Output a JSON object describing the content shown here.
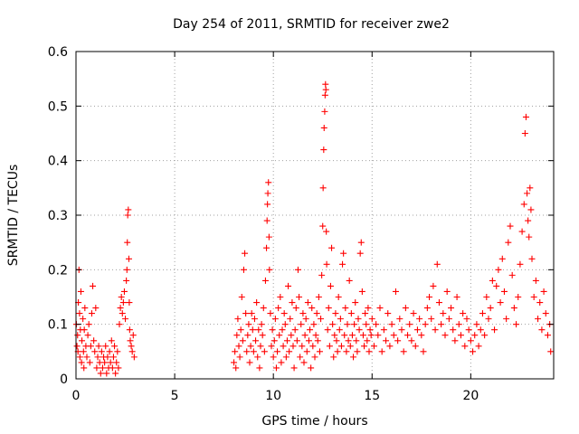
{
  "chart_data": {
    "type": "scatter",
    "title": "Day 254 of 2011, SRMTID for receiver zwe2",
    "xlabel": "GPS time / hours",
    "ylabel": "SRMTID / TECUs",
    "xlim": [
      0,
      24.2
    ],
    "ylim": [
      0,
      0.6
    ],
    "xticks": [
      0,
      5,
      10,
      15,
      20
    ],
    "xtick_labels": [
      "0",
      "5",
      "10",
      "15",
      "20"
    ],
    "yticks": [
      0,
      0.1,
      0.2,
      0.3,
      0.4,
      0.5,
      0.6
    ],
    "ytick_labels": [
      "0",
      "0.1",
      "0.2",
      "0.3",
      "0.4",
      "0.5",
      "0.6"
    ],
    "grid": true,
    "marker": "plus",
    "color": "#ff0000",
    "series": [
      {
        "name": "SRMTID",
        "points": [
          [
            0.02,
            0.1
          ],
          [
            0.05,
            0.06
          ],
          [
            0.08,
            0.08
          ],
          [
            0.1,
            0.05
          ],
          [
            0.12,
            0.14
          ],
          [
            0.15,
            0.2
          ],
          [
            0.18,
            0.12
          ],
          [
            0.2,
            0.04
          ],
          [
            0.22,
            0.09
          ],
          [
            0.25,
            0.16
          ],
          [
            0.28,
            0.03
          ],
          [
            0.3,
            0.07
          ],
          [
            0.35,
            0.11
          ],
          [
            0.38,
            0.05
          ],
          [
            0.4,
            0.02
          ],
          [
            0.42,
            0.09
          ],
          [
            0.45,
            0.13
          ],
          [
            0.5,
            0.06
          ],
          [
            0.55,
            0.04
          ],
          [
            0.6,
            0.08
          ],
          [
            0.65,
            0.1
          ],
          [
            0.7,
            0.03
          ],
          [
            0.75,
            0.06
          ],
          [
            0.8,
            0.12
          ],
          [
            0.85,
            0.17
          ],
          [
            0.9,
            0.07
          ],
          [
            0.95,
            0.05
          ],
          [
            1.0,
            0.13
          ],
          [
            1.05,
            0.02
          ],
          [
            1.1,
            0.04
          ],
          [
            1.15,
            0.06
          ],
          [
            1.2,
            0.03
          ],
          [
            1.25,
            0.01
          ],
          [
            1.3,
            0.05
          ],
          [
            1.35,
            0.02
          ],
          [
            1.4,
            0.04
          ],
          [
            1.45,
            0.03
          ],
          [
            1.5,
            0.06
          ],
          [
            1.55,
            0.01
          ],
          [
            1.6,
            0.04
          ],
          [
            1.65,
            0.02
          ],
          [
            1.7,
            0.05
          ],
          [
            1.75,
            0.03
          ],
          [
            1.8,
            0.07
          ],
          [
            1.85,
            0.02
          ],
          [
            1.9,
            0.04
          ],
          [
            1.95,
            0.06
          ],
          [
            2.0,
            0.01
          ],
          [
            2.05,
            0.03
          ],
          [
            2.1,
            0.05
          ],
          [
            2.15,
            0.02
          ],
          [
            2.2,
            0.1
          ],
          [
            2.25,
            0.13
          ],
          [
            2.3,
            0.15
          ],
          [
            2.35,
            0.12
          ],
          [
            2.4,
            0.14
          ],
          [
            2.45,
            0.16
          ],
          [
            2.5,
            0.11
          ],
          [
            2.55,
            0.18
          ],
          [
            2.58,
            0.2
          ],
          [
            2.6,
            0.25
          ],
          [
            2.62,
            0.3
          ],
          [
            2.65,
            0.31
          ],
          [
            2.68,
            0.22
          ],
          [
            2.7,
            0.14
          ],
          [
            2.72,
            0.09
          ],
          [
            2.75,
            0.07
          ],
          [
            2.8,
            0.06
          ],
          [
            2.85,
            0.05
          ],
          [
            2.9,
            0.08
          ],
          [
            2.95,
            0.04
          ],
          [
            8.0,
            0.03
          ],
          [
            8.05,
            0.05
          ],
          [
            8.1,
            0.02
          ],
          [
            8.15,
            0.08
          ],
          [
            8.2,
            0.11
          ],
          [
            8.25,
            0.06
          ],
          [
            8.3,
            0.04
          ],
          [
            8.35,
            0.09
          ],
          [
            8.4,
            0.15
          ],
          [
            8.45,
            0.07
          ],
          [
            8.5,
            0.2
          ],
          [
            8.55,
            0.23
          ],
          [
            8.6,
            0.12
          ],
          [
            8.65,
            0.05
          ],
          [
            8.7,
            0.08
          ],
          [
            8.75,
            0.1
          ],
          [
            8.8,
            0.03
          ],
          [
            8.85,
            0.06
          ],
          [
            8.9,
            0.12
          ],
          [
            8.95,
            0.09
          ],
          [
            9.0,
            0.05
          ],
          [
            9.05,
            0.11
          ],
          [
            9.1,
            0.07
          ],
          [
            9.15,
            0.14
          ],
          [
            9.2,
            0.04
          ],
          [
            9.25,
            0.09
          ],
          [
            9.3,
            0.02
          ],
          [
            9.35,
            0.06
          ],
          [
            9.4,
            0.1
          ],
          [
            9.45,
            0.08
          ],
          [
            9.5,
            0.13
          ],
          [
            9.55,
            0.05
          ],
          [
            9.6,
            0.18
          ],
          [
            9.65,
            0.24
          ],
          [
            9.68,
            0.29
          ],
          [
            9.7,
            0.32
          ],
          [
            9.72,
            0.34
          ],
          [
            9.75,
            0.36
          ],
          [
            9.78,
            0.26
          ],
          [
            9.8,
            0.2
          ],
          [
            9.85,
            0.12
          ],
          [
            9.9,
            0.06
          ],
          [
            9.95,
            0.09
          ],
          [
            10.0,
            0.04
          ],
          [
            10.05,
            0.07
          ],
          [
            10.1,
            0.11
          ],
          [
            10.15,
            0.02
          ],
          [
            10.2,
            0.05
          ],
          [
            10.25,
            0.13
          ],
          [
            10.3,
            0.08
          ],
          [
            10.35,
            0.15
          ],
          [
            10.4,
            0.03
          ],
          [
            10.45,
            0.09
          ],
          [
            10.5,
            0.06
          ],
          [
            10.55,
            0.12
          ],
          [
            10.6,
            0.1
          ],
          [
            10.65,
            0.04
          ],
          [
            10.7,
            0.07
          ],
          [
            10.75,
            0.17
          ],
          [
            10.8,
            0.05
          ],
          [
            10.85,
            0.11
          ],
          [
            10.9,
            0.08
          ],
          [
            10.95,
            0.14
          ],
          [
            11.0,
            0.06
          ],
          [
            11.05,
            0.02
          ],
          [
            11.1,
            0.09
          ],
          [
            11.15,
            0.13
          ],
          [
            11.2,
            0.07
          ],
          [
            11.25,
            0.2
          ],
          [
            11.3,
            0.15
          ],
          [
            11.35,
            0.04
          ],
          [
            11.4,
            0.1
          ],
          [
            11.45,
            0.06
          ],
          [
            11.5,
            0.12
          ],
          [
            11.55,
            0.03
          ],
          [
            11.6,
            0.08
          ],
          [
            11.65,
            0.11
          ],
          [
            11.7,
            0.05
          ],
          [
            11.75,
            0.14
          ],
          [
            11.8,
            0.07
          ],
          [
            11.85,
            0.09
          ],
          [
            11.9,
            0.02
          ],
          [
            11.95,
            0.13
          ],
          [
            12.0,
            0.06
          ],
          [
            12.05,
            0.1
          ],
          [
            12.1,
            0.04
          ],
          [
            12.15,
            0.08
          ],
          [
            12.2,
            0.12
          ],
          [
            12.25,
            0.07
          ],
          [
            12.3,
            0.15
          ],
          [
            12.35,
            0.05
          ],
          [
            12.4,
            0.11
          ],
          [
            12.45,
            0.19
          ],
          [
            12.5,
            0.28
          ],
          [
            12.52,
            0.35
          ],
          [
            12.55,
            0.42
          ],
          [
            12.57,
            0.46
          ],
          [
            12.6,
            0.49
          ],
          [
            12.62,
            0.52
          ],
          [
            12.64,
            0.54
          ],
          [
            12.66,
            0.53
          ],
          [
            12.68,
            0.27
          ],
          [
            12.7,
            0.21
          ],
          [
            12.75,
            0.09
          ],
          [
            12.8,
            0.13
          ],
          [
            12.85,
            0.06
          ],
          [
            12.9,
            0.17
          ],
          [
            12.95,
            0.24
          ],
          [
            13.0,
            0.1
          ],
          [
            13.05,
            0.04
          ],
          [
            13.1,
            0.08
          ],
          [
            13.15,
            0.12
          ],
          [
            13.2,
            0.07
          ],
          [
            13.25,
            0.05
          ],
          [
            13.3,
            0.15
          ],
          [
            13.35,
            0.09
          ],
          [
            13.4,
            0.11
          ],
          [
            13.45,
            0.06
          ],
          [
            13.5,
            0.21
          ],
          [
            13.55,
            0.23
          ],
          [
            13.6,
            0.08
          ],
          [
            13.65,
            0.13
          ],
          [
            13.7,
            0.05
          ],
          [
            13.75,
            0.1
          ],
          [
            13.8,
            0.07
          ],
          [
            13.85,
            0.18
          ],
          [
            13.9,
            0.06
          ],
          [
            13.95,
            0.12
          ],
          [
            14.0,
            0.08
          ],
          [
            14.05,
            0.04
          ],
          [
            14.1,
            0.1
          ],
          [
            14.15,
            0.14
          ],
          [
            14.2,
            0.07
          ],
          [
            14.25,
            0.05
          ],
          [
            14.3,
            0.11
          ],
          [
            14.35,
            0.09
          ],
          [
            14.4,
            0.23
          ],
          [
            14.45,
            0.25
          ],
          [
            14.5,
            0.16
          ],
          [
            14.55,
            0.08
          ],
          [
            14.6,
            0.06
          ],
          [
            14.65,
            0.12
          ],
          [
            14.7,
            0.1
          ],
          [
            14.75,
            0.07
          ],
          [
            14.8,
            0.13
          ],
          [
            14.85,
            0.05
          ],
          [
            14.9,
            0.09
          ],
          [
            14.95,
            0.08
          ],
          [
            15.0,
            0.11
          ],
          [
            15.1,
            0.06
          ],
          [
            15.2,
            0.1
          ],
          [
            15.3,
            0.08
          ],
          [
            15.4,
            0.13
          ],
          [
            15.5,
            0.05
          ],
          [
            15.6,
            0.09
          ],
          [
            15.7,
            0.07
          ],
          [
            15.8,
            0.12
          ],
          [
            15.9,
            0.06
          ],
          [
            16.0,
            0.1
          ],
          [
            16.1,
            0.08
          ],
          [
            16.2,
            0.16
          ],
          [
            16.3,
            0.07
          ],
          [
            16.4,
            0.11
          ],
          [
            16.5,
            0.09
          ],
          [
            16.6,
            0.05
          ],
          [
            16.7,
            0.13
          ],
          [
            16.8,
            0.08
          ],
          [
            16.9,
            0.1
          ],
          [
            17.0,
            0.07
          ],
          [
            17.1,
            0.12
          ],
          [
            17.2,
            0.06
          ],
          [
            17.3,
            0.09
          ],
          [
            17.4,
            0.11
          ],
          [
            17.5,
            0.08
          ],
          [
            17.6,
            0.05
          ],
          [
            17.7,
            0.1
          ],
          [
            17.8,
            0.13
          ],
          [
            17.9,
            0.15
          ],
          [
            18.0,
            0.11
          ],
          [
            18.1,
            0.17
          ],
          [
            18.2,
            0.09
          ],
          [
            18.3,
            0.21
          ],
          [
            18.4,
            0.14
          ],
          [
            18.5,
            0.1
          ],
          [
            18.6,
            0.12
          ],
          [
            18.7,
            0.08
          ],
          [
            18.8,
            0.16
          ],
          [
            18.9,
            0.11
          ],
          [
            19.0,
            0.13
          ],
          [
            19.1,
            0.09
          ],
          [
            19.2,
            0.07
          ],
          [
            19.3,
            0.15
          ],
          [
            19.4,
            0.1
          ],
          [
            19.5,
            0.08
          ],
          [
            19.6,
            0.12
          ],
          [
            19.7,
            0.06
          ],
          [
            19.8,
            0.11
          ],
          [
            19.9,
            0.09
          ],
          [
            20.0,
            0.07
          ],
          [
            20.1,
            0.05
          ],
          [
            20.2,
            0.08
          ],
          [
            20.3,
            0.1
          ],
          [
            20.4,
            0.06
          ],
          [
            20.5,
            0.09
          ],
          [
            20.6,
            0.12
          ],
          [
            20.7,
            0.08
          ],
          [
            20.8,
            0.15
          ],
          [
            20.9,
            0.11
          ],
          [
            21.0,
            0.13
          ],
          [
            21.1,
            0.18
          ],
          [
            21.2,
            0.09
          ],
          [
            21.3,
            0.17
          ],
          [
            21.4,
            0.2
          ],
          [
            21.5,
            0.14
          ],
          [
            21.6,
            0.22
          ],
          [
            21.7,
            0.16
          ],
          [
            21.8,
            0.11
          ],
          [
            21.9,
            0.25
          ],
          [
            22.0,
            0.28
          ],
          [
            22.1,
            0.19
          ],
          [
            22.2,
            0.13
          ],
          [
            22.3,
            0.1
          ],
          [
            22.4,
            0.15
          ],
          [
            22.5,
            0.21
          ],
          [
            22.6,
            0.27
          ],
          [
            22.7,
            0.32
          ],
          [
            22.75,
            0.45
          ],
          [
            22.8,
            0.48
          ],
          [
            22.85,
            0.34
          ],
          [
            22.9,
            0.29
          ],
          [
            22.95,
            0.26
          ],
          [
            23.0,
            0.35
          ],
          [
            23.05,
            0.31
          ],
          [
            23.1,
            0.22
          ],
          [
            23.2,
            0.15
          ],
          [
            23.3,
            0.18
          ],
          [
            23.4,
            0.11
          ],
          [
            23.5,
            0.14
          ],
          [
            23.6,
            0.09
          ],
          [
            23.7,
            0.16
          ],
          [
            23.8,
            0.12
          ],
          [
            23.9,
            0.08
          ],
          [
            24.0,
            0.1
          ],
          [
            24.05,
            0.05
          ]
        ]
      }
    ]
  }
}
